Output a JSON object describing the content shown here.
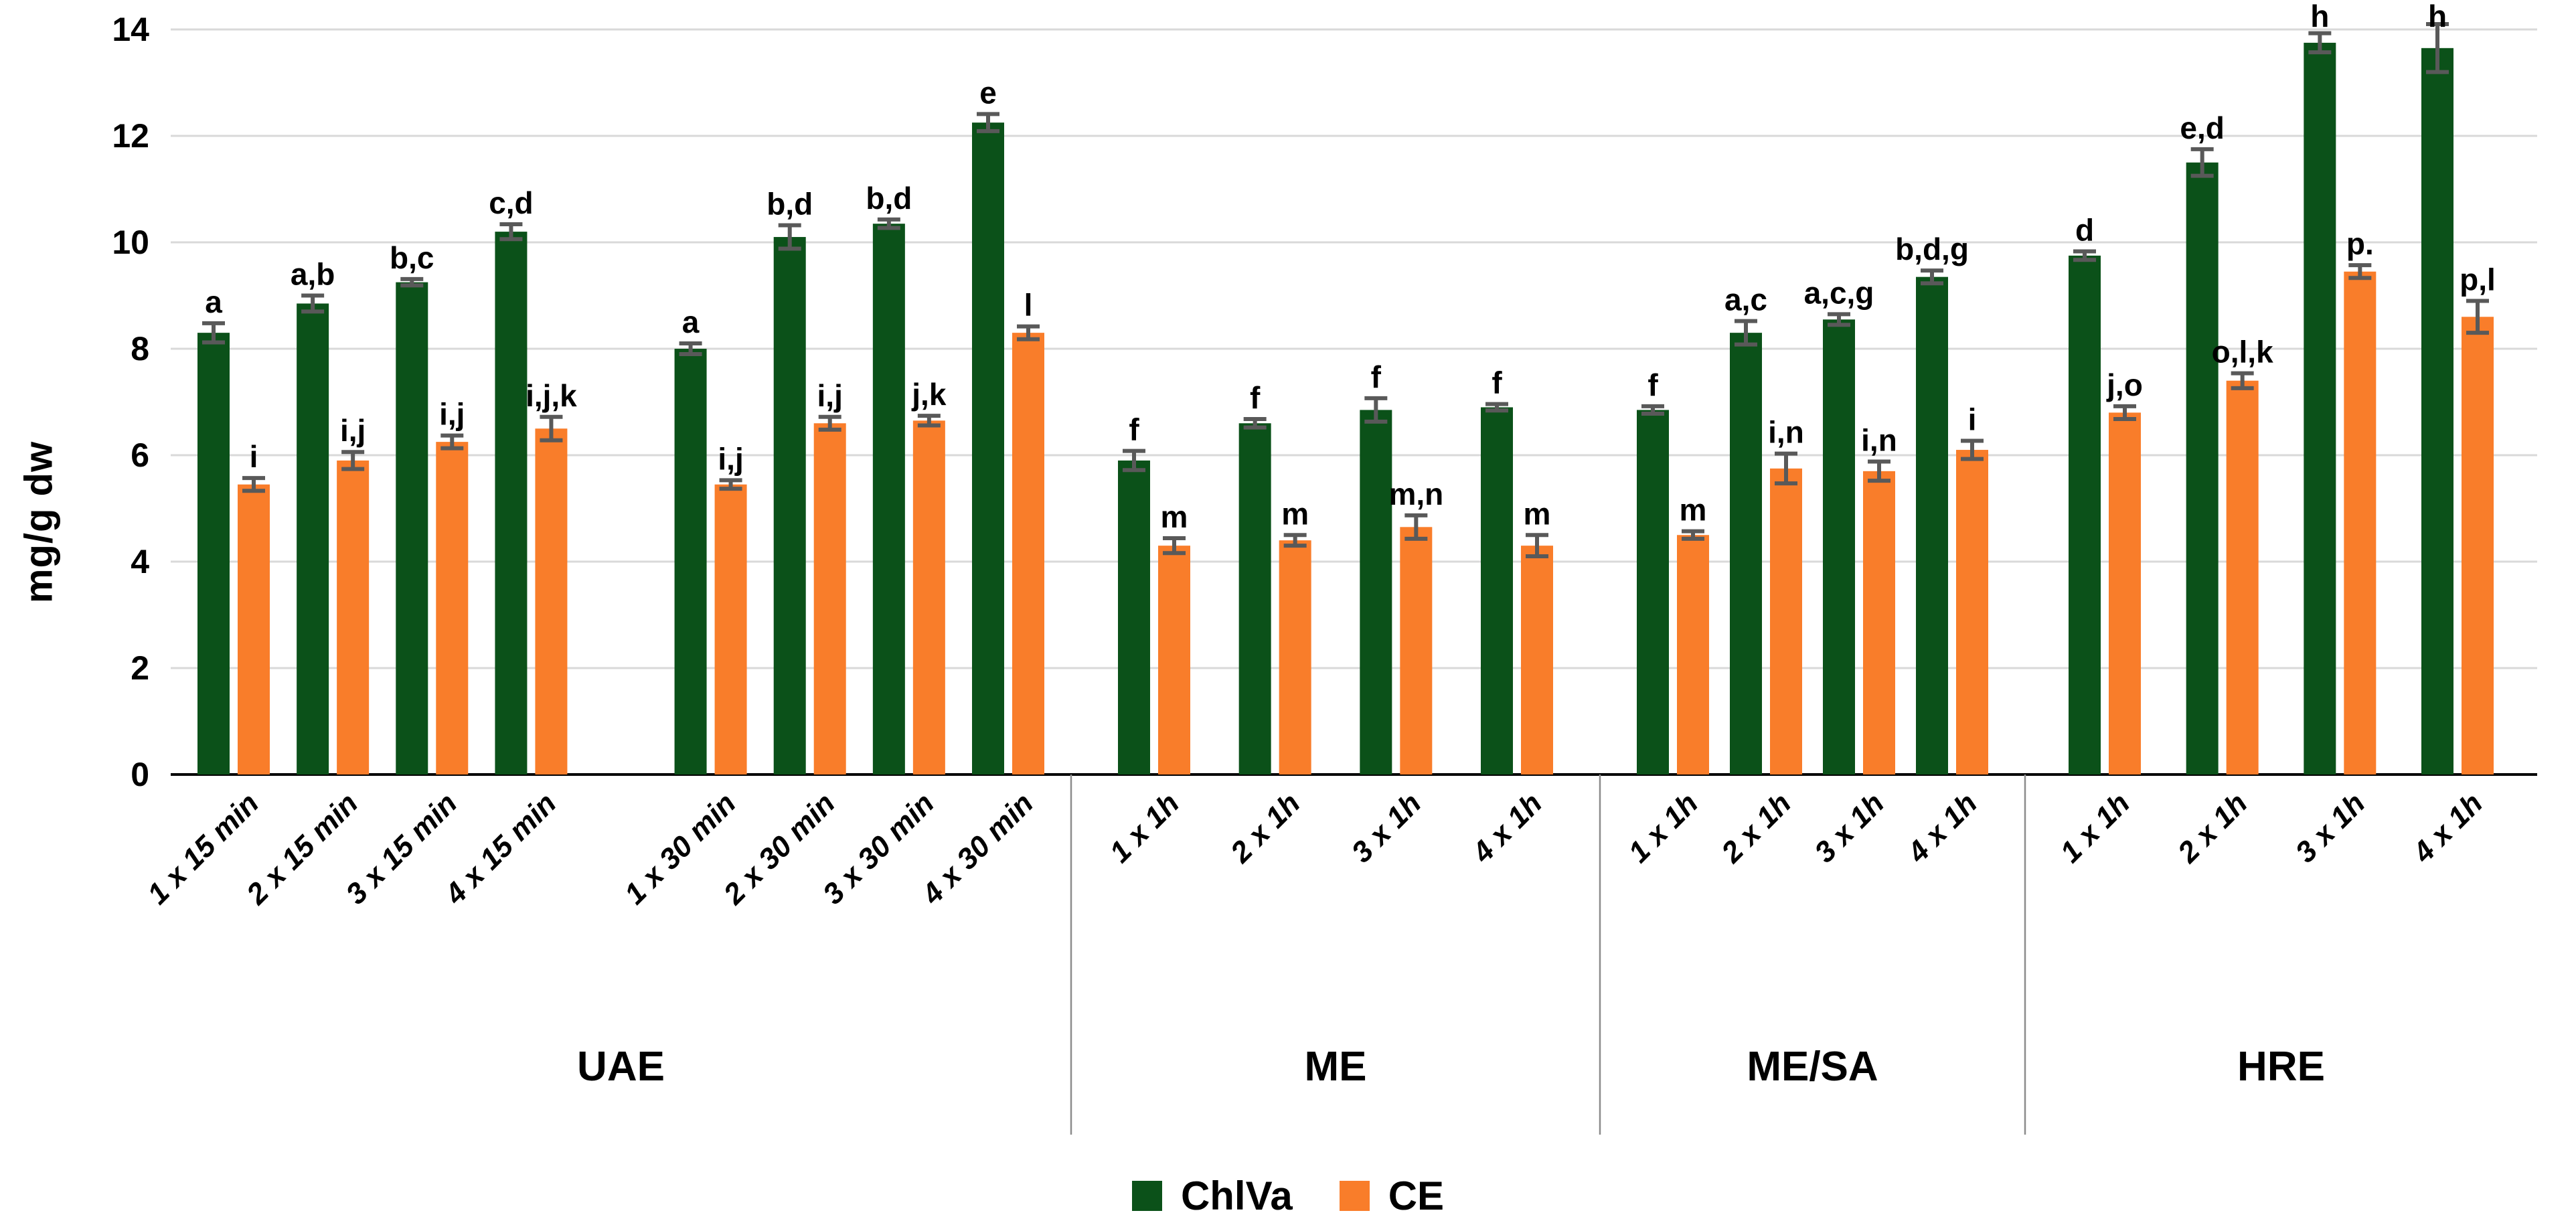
{
  "chart_data": {
    "type": "bar",
    "title": "",
    "xlabel": "",
    "ylabel": "mg/g dw",
    "ylim": [
      0,
      14
    ],
    "ytick_step": 2,
    "yticks": [
      0,
      2,
      4,
      6,
      8,
      10,
      12,
      14
    ],
    "grid": true,
    "legend_position": "bottom",
    "legend": [
      {
        "name": "ChlVa",
        "color": "#0B5119"
      },
      {
        "name": "CE",
        "color": "#F97D2A"
      }
    ],
    "colors": {
      "bar_chlva": "#0B5119",
      "bar_ce": "#F97D2A",
      "error_bar": "#595959",
      "gridline": "#D9D9D9",
      "axis_line": "#000000",
      "divider": "#8C8C8C"
    },
    "groups": [
      {
        "label": "UAE",
        "split_after": 4,
        "categories": [
          "1 x 15 min",
          "2 x 15 min",
          "3 x 15 min",
          "4 x 15 min",
          "1 x 30 min",
          "2 x 30 min",
          "3 x 30 min",
          "4 x 30 min"
        ],
        "series": [
          {
            "name": "ChlVa",
            "values": [
              8.3,
              8.85,
              9.25,
              10.2,
              8.0,
              10.1,
              10.35,
              12.25
            ],
            "errors": [
              0.18,
              0.15,
              0.06,
              0.14,
              0.1,
              0.22,
              0.08,
              0.16
            ],
            "labels": [
              "a",
              "a,b",
              "b,c",
              "c,d",
              "a",
              "b,d",
              "b,d",
              "e"
            ]
          },
          {
            "name": "CE",
            "values": [
              5.45,
              5.9,
              6.25,
              6.5,
              5.45,
              6.6,
              6.65,
              8.3
            ],
            "errors": [
              0.12,
              0.16,
              0.12,
              0.22,
              0.08,
              0.12,
              0.09,
              0.12
            ],
            "labels": [
              "i",
              "i,j",
              "i,j",
              "i,j,k",
              "i,j",
              "i,j",
              "j,k",
              "l"
            ]
          }
        ]
      },
      {
        "label": "ME",
        "split_after": 0,
        "categories": [
          "1 x 1h",
          "2 x 1h",
          "3 x 1h",
          "4 x 1h"
        ],
        "series": [
          {
            "name": "ChlVa",
            "values": [
              5.9,
              6.6,
              6.85,
              6.9
            ],
            "errors": [
              0.18,
              0.08,
              0.22,
              0.06
            ],
            "labels": [
              "f",
              "f",
              "f",
              "f"
            ]
          },
          {
            "name": "CE",
            "values": [
              4.3,
              4.4,
              4.65,
              4.3
            ],
            "errors": [
              0.14,
              0.1,
              0.22,
              0.2
            ],
            "labels": [
              "m",
              "m",
              "m,n",
              "m"
            ]
          }
        ]
      },
      {
        "label": "ME/SA",
        "split_after": 0,
        "categories": [
          "1 x 1h",
          "2 x 1h",
          "3 x 1h",
          "4 x 1h"
        ],
        "series": [
          {
            "name": "ChlVa",
            "values": [
              6.85,
              8.3,
              8.55,
              9.35
            ],
            "errors": [
              0.07,
              0.22,
              0.1,
              0.12
            ],
            "labels": [
              "f",
              "a,c",
              "a,c,g",
              "b,d,g"
            ]
          },
          {
            "name": "CE",
            "values": [
              4.5,
              5.75,
              5.7,
              6.1
            ],
            "errors": [
              0.07,
              0.28,
              0.18,
              0.17
            ],
            "labels": [
              "m",
              "i,n",
              "i,n",
              "i"
            ]
          }
        ]
      },
      {
        "label": "HRE",
        "split_after": 0,
        "categories": [
          "1 x 1h",
          "2 x 1h",
          "3 x 1h",
          "4 x 1h"
        ],
        "series": [
          {
            "name": "ChlVa",
            "values": [
              9.75,
              11.5,
              13.75,
              13.65
            ],
            "errors": [
              0.08,
              0.25,
              0.18,
              0.45
            ],
            "labels": [
              "d",
              "e,d",
              "h",
              "h"
            ]
          },
          {
            "name": "CE",
            "values": [
              6.8,
              7.4,
              9.45,
              8.6
            ],
            "errors": [
              0.12,
              0.14,
              0.12,
              0.3
            ],
            "labels": [
              "j,o",
              "o,l,k",
              "p.",
              "p,l"
            ]
          }
        ]
      }
    ]
  }
}
